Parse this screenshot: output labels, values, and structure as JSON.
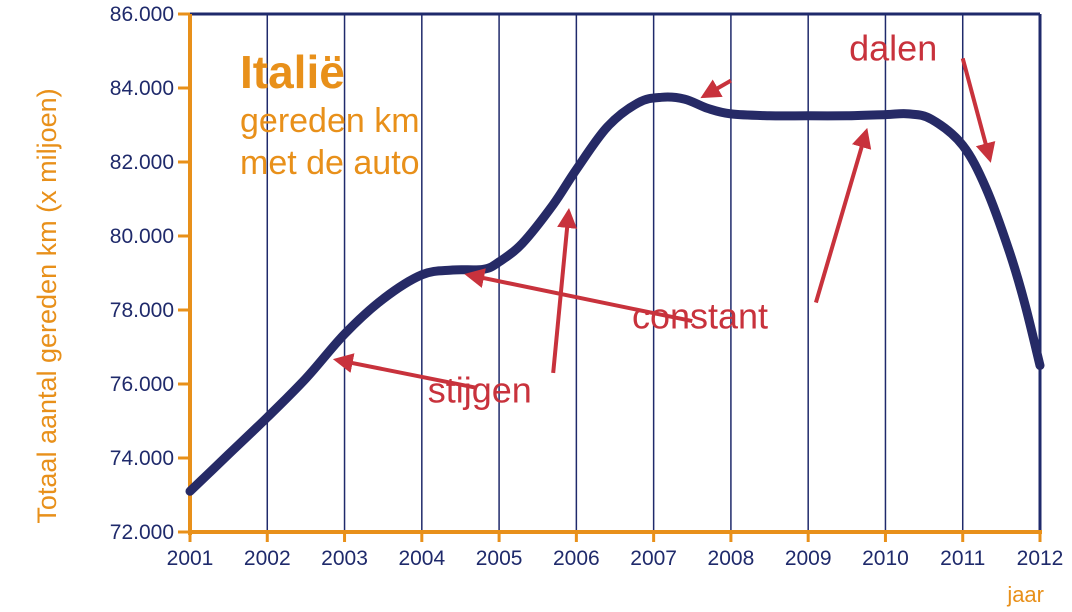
{
  "chart_data": {
    "type": "line",
    "title": "Italië",
    "subtitle_lines": [
      "gereden km",
      "met de auto"
    ],
    "ylabel": "Totaal aantal gereden km (x miljoen)",
    "xlabel": "jaar",
    "x": [
      2001,
      2002,
      2003,
      2004,
      2005,
      2006,
      2007,
      2008,
      2009,
      2010,
      2011,
      2012
    ],
    "xticks": [
      "2001",
      "2002",
      "2003",
      "2004",
      "2005",
      "2006",
      "2007",
      "2008",
      "2009",
      "2010",
      "2011",
      "2012"
    ],
    "yticks": [
      "72.000",
      "74.000",
      "76.000",
      "78.000",
      "80.000",
      "82.000",
      "84.000",
      "86.000"
    ],
    "ylim": [
      72000,
      86000
    ],
    "xlim": [
      2001,
      2012
    ],
    "grid": "vertical",
    "series": [
      {
        "color": "#262a66",
        "points": [
          [
            2001.0,
            73100
          ],
          [
            2001.5,
            74100
          ],
          [
            2002.0,
            75100
          ],
          [
            2002.5,
            76150
          ],
          [
            2003.0,
            77350
          ],
          [
            2003.5,
            78300
          ],
          [
            2004.0,
            78950
          ],
          [
            2004.4,
            79080
          ],
          [
            2004.8,
            79100
          ],
          [
            2005.0,
            79300
          ],
          [
            2005.3,
            79800
          ],
          [
            2005.7,
            80850
          ],
          [
            2006.0,
            81800
          ],
          [
            2006.4,
            82950
          ],
          [
            2006.8,
            83600
          ],
          [
            2007.1,
            83750
          ],
          [
            2007.4,
            83700
          ],
          [
            2007.7,
            83450
          ],
          [
            2008.0,
            83300
          ],
          [
            2008.5,
            83250
          ],
          [
            2009.0,
            83250
          ],
          [
            2009.5,
            83250
          ],
          [
            2010.0,
            83280
          ],
          [
            2010.3,
            83300
          ],
          [
            2010.6,
            83150
          ],
          [
            2011.0,
            82450
          ],
          [
            2011.3,
            81300
          ],
          [
            2011.6,
            79600
          ],
          [
            2011.8,
            78200
          ],
          [
            2012.0,
            76500
          ]
        ]
      }
    ],
    "annotations": [
      {
        "text": "dalen",
        "x": 2010.1,
        "y": 84750,
        "arrows": [
          [
            2008.0,
            84200,
            2007.65,
            83780
          ],
          [
            2011.0,
            84800,
            2011.35,
            82080
          ]
        ]
      },
      {
        "text": "constant",
        "x": 2007.6,
        "y": 77500,
        "arrows": [
          [
            2007.5,
            77700,
            2004.6,
            78950
          ],
          [
            2009.1,
            78200,
            2009.75,
            82820
          ]
        ]
      },
      {
        "text": "stijgen",
        "x": 2004.75,
        "y": 75500,
        "arrows": [
          [
            2004.7,
            75900,
            2002.9,
            76650
          ],
          [
            2005.7,
            76300,
            2005.9,
            80650
          ]
        ]
      }
    ],
    "colors": {
      "axis": "#e8901a",
      "grid": "#1f2a6b",
      "line": "#262a66",
      "text": "#1f2a6b",
      "label": "#e8901a",
      "annotation": "#c8323c"
    }
  }
}
